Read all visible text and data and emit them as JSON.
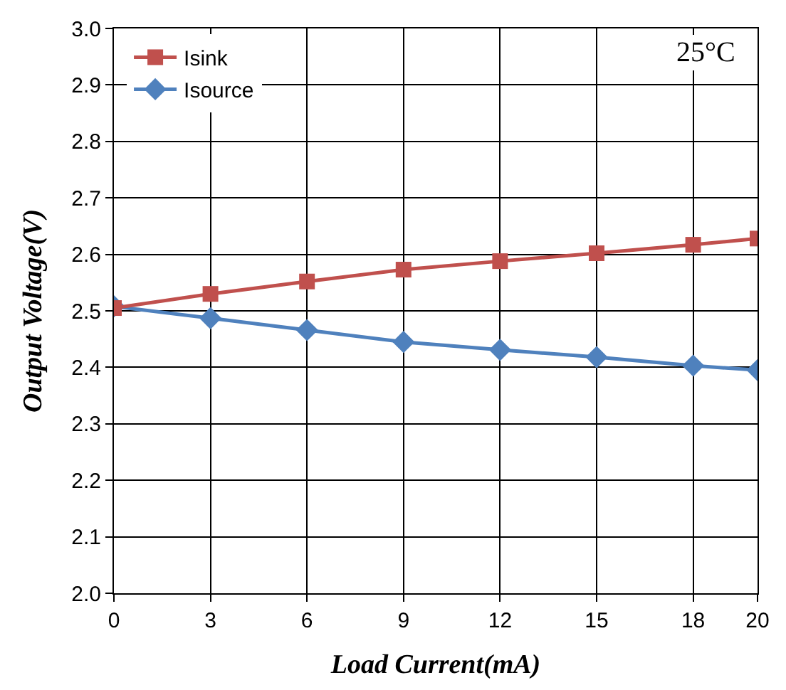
{
  "chart_data": {
    "type": "line",
    "xlabel": "Load Current(mA)",
    "ylabel": "Output Voltage(V)",
    "x": [
      0,
      3,
      6,
      9,
      12,
      15,
      18,
      20
    ],
    "series": [
      {
        "name": "Isink",
        "color": "#c0504d",
        "marker": "square",
        "values": [
          2.505,
          2.53,
          2.552,
          2.573,
          2.588,
          2.602,
          2.617,
          2.628
        ]
      },
      {
        "name": "Isource",
        "color": "#4f81bd",
        "marker": "diamond",
        "values": [
          2.508,
          2.487,
          2.466,
          2.445,
          2.431,
          2.418,
          2.403,
          2.395
        ]
      }
    ],
    "xlim": [
      0,
      20
    ],
    "xticks": [
      0,
      3,
      6,
      9,
      12,
      15,
      18,
      20
    ],
    "ylim": [
      2.0,
      3.0
    ],
    "yticks": [
      {
        "value": 2.0,
        "label": "2.0"
      },
      2.1,
      2.2,
      2.3,
      2.4,
      2.5,
      2.6,
      2.7,
      2.8,
      2.9,
      {
        "value": 3.0,
        "label": "3.0"
      }
    ],
    "annotations": [
      "25°C"
    ],
    "grid": true,
    "legend": "top left",
    "line_style": "solid"
  }
}
